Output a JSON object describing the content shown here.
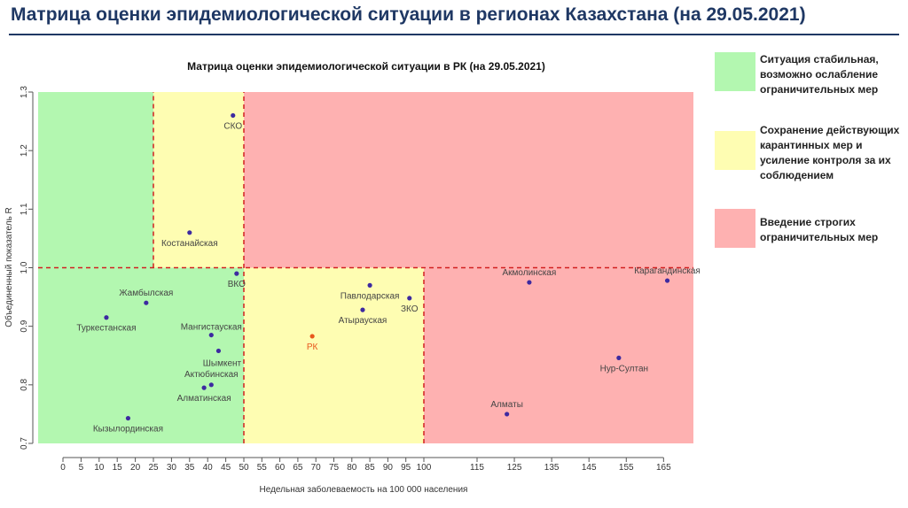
{
  "page": {
    "title": "Матрица оценки эпидемиологической ситуации в регионах Казахстана (на 29.05.2021)"
  },
  "colors": {
    "green": "#b3f7b0",
    "yellow": "#fefdb2",
    "red": "#feb1b1",
    "divider": "#d22020",
    "point": "#3d2aa0",
    "point_rk": "#e8571d",
    "label": "#444444",
    "label_rk": "#e8571d"
  },
  "legend": [
    {
      "color_key": "green",
      "lines": [
        "Ситуация стабильная,",
        "возможно ослабление",
        "ограничительных мер"
      ]
    },
    {
      "color_key": "yellow",
      "lines": [
        "Сохранение действующих",
        "карантинных мер и",
        "усиление контроля за их",
        "соблюдением"
      ]
    },
    {
      "color_key": "red",
      "lines": [
        "Введение строгих",
        "ограничительных мер"
      ]
    }
  ],
  "chart_data": {
    "type": "scatter",
    "title": "Матрица оценки эпидемиологической ситуации в РК (на 29.05.2021)",
    "xlabel": "Недельная заболеваемость на 100 000 населения",
    "ylabel": "Объединенный показатель R",
    "xlim": [
      -3,
      173
    ],
    "ylim": [
      0.7,
      1.3
    ],
    "x_ticks": [
      0,
      5,
      10,
      15,
      20,
      25,
      30,
      35,
      40,
      45,
      50,
      55,
      60,
      65,
      70,
      75,
      80,
      85,
      90,
      95,
      100,
      115,
      125,
      135,
      145,
      155,
      165
    ],
    "x_tick_labels": [
      "0",
      "5",
      "10",
      "15",
      "20",
      "25",
      "30",
      "35",
      "40",
      "45",
      "50",
      "55",
      "60",
      "65",
      "70",
      "75",
      "80",
      "85",
      "90",
      "95",
      "100",
      "115",
      "125",
      "135",
      "145",
      "155",
      "165"
    ],
    "y_ticks": [
      0.7,
      0.8,
      0.9,
      1.0,
      1.1,
      1.2,
      1.3
    ],
    "y_tick_labels": [
      "0.7",
      "0.8",
      "0.9",
      "1.0",
      "1.1",
      "1.2",
      "1.3"
    ],
    "grid": false,
    "zones": [
      {
        "x": [
          -3,
          50
        ],
        "y": [
          0.7,
          1.0
        ],
        "color_key": "green"
      },
      {
        "x": [
          -3,
          25
        ],
        "y": [
          1.0,
          1.3
        ],
        "color_key": "green"
      },
      {
        "x": [
          25,
          50
        ],
        "y": [
          1.0,
          1.3
        ],
        "color_key": "yellow"
      },
      {
        "x": [
          50,
          100
        ],
        "y": [
          0.7,
          1.0
        ],
        "color_key": "yellow"
      },
      {
        "x": [
          50,
          173
        ],
        "y": [
          1.0,
          1.3
        ],
        "color_key": "red"
      },
      {
        "x": [
          100,
          173
        ],
        "y": [
          0.7,
          1.0
        ],
        "color_key": "red"
      }
    ],
    "dividers": [
      {
        "x": [
          25,
          25
        ],
        "y": [
          1.0,
          1.3
        ]
      },
      {
        "x": [
          50,
          50
        ],
        "y": [
          0.7,
          1.3
        ]
      },
      {
        "x": [
          100,
          100
        ],
        "y": [
          0.7,
          1.0
        ]
      },
      {
        "x": [
          -3,
          173
        ],
        "y": [
          1.0,
          1.0
        ]
      }
    ],
    "points": [
      {
        "name": "СКО",
        "x": 47,
        "y": 1.26
      },
      {
        "name": "Костанайская",
        "x": 35,
        "y": 1.06
      },
      {
        "name": "ВКО",
        "x": 48,
        "y": 0.99
      },
      {
        "name": "Жамбылская",
        "x": 23,
        "y": 0.94
      },
      {
        "name": "Туркестанская",
        "x": 12,
        "y": 0.915
      },
      {
        "name": "Мангистауская",
        "x": 41,
        "y": 0.885
      },
      {
        "name": "Шымкент",
        "x": 43,
        "y": 0.858
      },
      {
        "name": "Актюбинская",
        "x": 41,
        "y": 0.8
      },
      {
        "name": "Алматинская",
        "x": 39,
        "y": 0.795
      },
      {
        "name": "Кызылординская",
        "x": 18,
        "y": 0.743
      },
      {
        "name": "Павлодарская",
        "x": 85,
        "y": 0.97
      },
      {
        "name": "ЗКО",
        "x": 96,
        "y": 0.948
      },
      {
        "name": "Атырауская",
        "x": 83,
        "y": 0.928
      },
      {
        "name": "РК",
        "x": 69,
        "y": 0.883,
        "highlight": true
      },
      {
        "name": "Акмолинская",
        "x": 129,
        "y": 0.975
      },
      {
        "name": "Карагандинская",
        "x": 166,
        "y": 0.978
      },
      {
        "name": "Нур-Султан",
        "x": 153,
        "y": 0.846
      },
      {
        "name": "Алматы",
        "x": 123,
        "y": 0.75
      }
    ]
  }
}
